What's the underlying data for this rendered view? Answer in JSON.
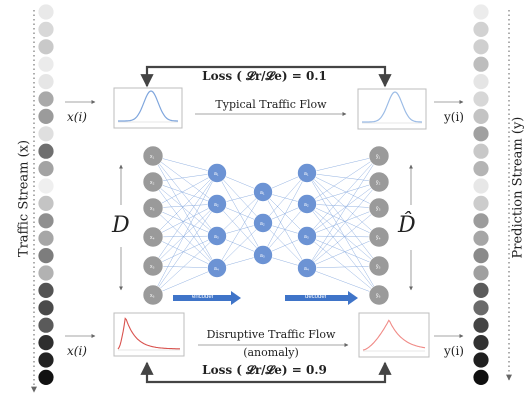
{
  "labels": {
    "traffic_stream": "Traffic Stream (x)",
    "prediction_stream": "Prediction Stream (y)",
    "loss_top": "Loss ( 𝓛r/𝓛e)  = 0.1",
    "loss_bottom": "Loss ( 𝓛r/𝓛e)  = 0.9",
    "typical_flow": "Typical Traffic Flow",
    "disruptive_flow": "Disruptive Traffic Flow",
    "anomaly": "(anomaly)",
    "x_in_top": "x(i)",
    "x_in_bottom": "x(i)",
    "y_out_top": "y(i)",
    "y_out_bottom": "y(i)",
    "D": "D",
    "D_hat": "D̂",
    "encoder": "encoder",
    "decoder": "decoder"
  },
  "node_labels": {
    "input": [
      "x₁",
      "x₂",
      "x₃",
      "x₄",
      "x₅",
      "x₆"
    ],
    "enc_hidden": [
      "a₁",
      "a₂",
      "a₃",
      "a₄"
    ],
    "bottleneck": [
      "a₁",
      "a₂",
      "a₃"
    ],
    "dec_hidden": [
      "a₁",
      "a₂",
      "a₃",
      "a₄"
    ],
    "output": [
      "ŷ₁",
      "ŷ₂",
      "ŷ₃",
      "ŷ₄",
      "ŷ₅",
      "ŷ₆"
    ]
  },
  "colors": {
    "io_node": "#9a9a9a",
    "hidden_node": "#6c93d4",
    "connection": "#7fa3dc",
    "arrow_blue": "#3f74c8",
    "typical_curve": "#7fa6dd",
    "disruptive_curve": "#d9534f",
    "disruptive_curve_out": "#f08a86"
  },
  "left_stream_shades": [
    "#e9e9e9",
    "#d8d8d8",
    "#c9c9c9",
    "#ebebeb",
    "#e6e6e6",
    "#a9a9a9",
    "#9b9b9b",
    "#dfdfdf",
    "#6f6f6f",
    "#a3a3a3",
    "#efefef",
    "#c4c4c4",
    "#8f8f8f",
    "#a6a6a6",
    "#7d7d7d",
    "#b2b2b2",
    "#545454",
    "#4a4a4a",
    "#5a5a5a",
    "#2e2e2e",
    "#222222",
    "#111111"
  ],
  "right_stream_shades": [
    "#ececec",
    "#d2d2d2",
    "#cfcfcf",
    "#bdbdbd",
    "#e5e5e5",
    "#d7d7d7",
    "#c3c3c3",
    "#a0a0a0",
    "#c8c8c8",
    "#b4b4b4",
    "#e7e7e7",
    "#cccccc",
    "#9c9c9c",
    "#a6a6a6",
    "#8a8a8a",
    "#9f9f9f",
    "#5b5b5b",
    "#6a6a6a",
    "#444444",
    "#323232",
    "#1f1f1f",
    "#0f0f0f"
  ]
}
